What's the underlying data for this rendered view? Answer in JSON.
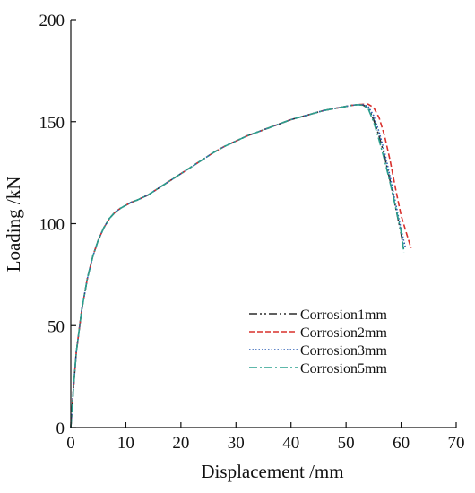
{
  "chart_data": {
    "type": "line",
    "title": "",
    "xlabel": "Displacement /mm",
    "ylabel": "Loading /kN",
    "xlim": [
      0,
      70
    ],
    "ylim": [
      0,
      200
    ],
    "xticks": [
      0,
      10,
      20,
      30,
      40,
      50,
      60,
      70
    ],
    "yticks": [
      0,
      50,
      100,
      150,
      200
    ],
    "grid": false,
    "legend_position": "bottom-right",
    "series": [
      {
        "name": "Corrosion1mm",
        "color": "#2b2b2b",
        "dash": "dash-dot-dot",
        "x": [
          0,
          0.5,
          1,
          2,
          3,
          4,
          5,
          6,
          7,
          8,
          9,
          10,
          11,
          12,
          14,
          16,
          18,
          20,
          22,
          24,
          26,
          28,
          30,
          32,
          34,
          36,
          38,
          40,
          42,
          44,
          46,
          48,
          50,
          51,
          52,
          53,
          54,
          55,
          56,
          57,
          58,
          59,
          60,
          60.5
        ],
        "y": [
          0,
          20,
          37,
          58,
          73,
          84,
          92,
          98,
          102.5,
          105.5,
          107.5,
          109,
          110.5,
          111.5,
          114,
          117.5,
          121,
          124.5,
          128,
          131.5,
          135,
          138,
          140.5,
          143,
          145,
          147,
          149,
          151,
          152.5,
          154,
          155.5,
          156.5,
          157.5,
          158,
          158.3,
          158.2,
          157,
          151,
          143,
          133,
          121,
          108,
          95,
          87
        ]
      },
      {
        "name": "Corrosion2mm",
        "color": "#d9302c",
        "dash": "dashed",
        "x": [
          0,
          0.5,
          1,
          2,
          3,
          4,
          5,
          6,
          7,
          8,
          9,
          10,
          11,
          12,
          14,
          16,
          18,
          20,
          22,
          24,
          26,
          28,
          30,
          32,
          34,
          36,
          38,
          40,
          42,
          44,
          46,
          48,
          50,
          51,
          52,
          53,
          54,
          55,
          56,
          57,
          58,
          59,
          60,
          61,
          61.8
        ],
        "y": [
          0,
          20,
          37,
          58,
          73,
          84,
          92,
          98,
          102.5,
          105.5,
          107.5,
          109,
          110.5,
          111.5,
          114,
          117.5,
          121,
          124.5,
          128,
          131.5,
          135,
          138,
          140.5,
          143,
          145,
          147,
          149,
          151,
          152.5,
          154,
          155.5,
          156.5,
          157.5,
          158,
          158.3,
          158.5,
          158.6,
          157,
          152,
          143,
          131,
          117,
          104,
          95,
          88
        ]
      },
      {
        "name": "Corrosion3mm",
        "color": "#2c5fb5",
        "dash": "dotted",
        "x": [
          0,
          0.5,
          1,
          2,
          3,
          4,
          5,
          6,
          7,
          8,
          9,
          10,
          11,
          12,
          14,
          16,
          18,
          20,
          22,
          24,
          26,
          28,
          30,
          32,
          34,
          36,
          38,
          40,
          42,
          44,
          46,
          48,
          50,
          51,
          52,
          53,
          54,
          55,
          56,
          57,
          58,
          59,
          60,
          60.8
        ],
        "y": [
          0,
          20,
          37,
          58,
          73,
          84,
          92,
          98,
          102.5,
          105.5,
          107.5,
          109,
          110.5,
          111.5,
          114,
          117.5,
          121,
          124.5,
          128,
          131.5,
          135,
          138,
          140.5,
          143,
          145,
          147,
          149,
          151,
          152.5,
          154,
          155.5,
          156.5,
          157.5,
          158,
          158.3,
          158.4,
          157.5,
          153,
          145,
          135,
          123,
          110,
          97,
          88
        ]
      },
      {
        "name": "Corrosion5mm",
        "color": "#2aa08e",
        "dash": "dash-dot",
        "x": [
          0,
          0.5,
          1,
          2,
          3,
          4,
          5,
          6,
          7,
          8,
          9,
          10,
          11,
          12,
          14,
          16,
          18,
          20,
          22,
          24,
          26,
          28,
          30,
          32,
          34,
          36,
          38,
          40,
          42,
          44,
          46,
          48,
          50,
          51,
          52,
          53,
          54,
          55,
          56,
          57,
          58,
          59,
          60,
          60.5
        ],
        "y": [
          0,
          20,
          37,
          58,
          73,
          84,
          92,
          98,
          102.5,
          105.5,
          107.5,
          109,
          110.5,
          111.5,
          114,
          117.5,
          121,
          124.5,
          128,
          131.5,
          135,
          138,
          140.5,
          143,
          145,
          147,
          149,
          151,
          152.5,
          154,
          155.5,
          156.5,
          157.5,
          158,
          158.3,
          158.1,
          156.5,
          150,
          141,
          131,
          120,
          108,
          96,
          86
        ]
      }
    ]
  }
}
